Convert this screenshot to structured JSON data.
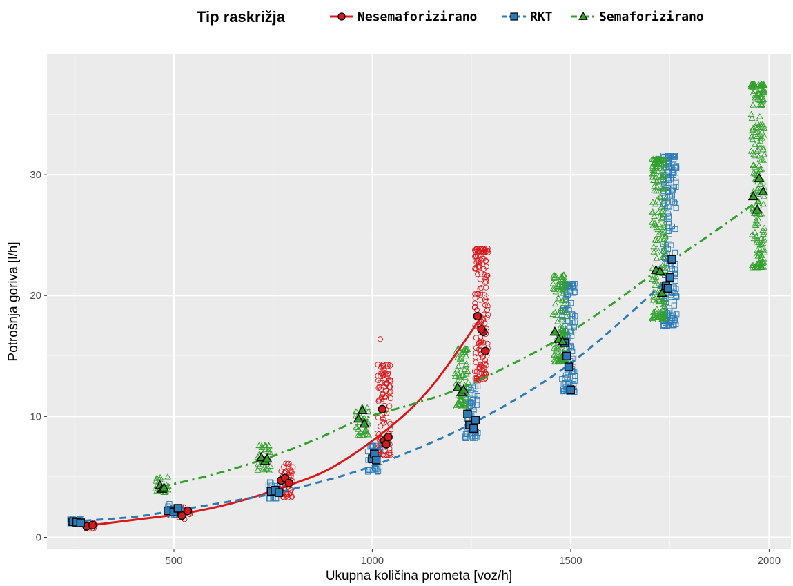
{
  "chart_data": {
    "type": "scatter",
    "legend": {
      "title": "Tip raskrižja",
      "position": "top"
    },
    "xlabel": "Ukupna količina prometa [voz/h]",
    "ylabel": "Potrošnja goriva [l/h]",
    "xlim": [
      180,
      2055
    ],
    "ylim": [
      -1,
      40
    ],
    "x_ticks": [
      500,
      1000,
      1500,
      2000
    ],
    "y_ticks": [
      0,
      10,
      20,
      30
    ],
    "x_tick_labels": [
      "500",
      "1000",
      "1500",
      "2000"
    ],
    "y_tick_labels": [
      "0",
      "10",
      "20",
      "30"
    ],
    "grid": true,
    "series": [
      {
        "name": "Nesemaforizirano",
        "color": "#d7191c",
        "marker": "circle",
        "line_style": "solid",
        "fit_curve": [
          [
            280,
            0.95
          ],
          [
            400,
            1.45
          ],
          [
            530,
            2.0
          ],
          [
            650,
            2.85
          ],
          [
            780,
            4.2
          ],
          [
            900,
            5.8
          ],
          [
            1040,
            9.0
          ],
          [
            1150,
            12.5
          ],
          [
            1270,
            18.0
          ]
        ],
        "mean_points": [
          [
            280,
            0.9
          ],
          [
            295,
            1.0
          ],
          [
            510,
            2.1
          ],
          [
            520,
            1.8
          ],
          [
            535,
            2.2
          ],
          [
            770,
            4.7
          ],
          [
            780,
            4.9
          ],
          [
            790,
            4.5
          ],
          [
            1025,
            10.6
          ],
          [
            1030,
            8.0
          ],
          [
            1040,
            8.3
          ],
          [
            1035,
            7.7
          ],
          [
            1265,
            18.3
          ],
          [
            1280,
            17.0
          ],
          [
            1285,
            15.4
          ],
          [
            1275,
            17.2
          ]
        ],
        "clouds": [
          {
            "x": 285,
            "y_min": 0.7,
            "y_max": 1.2
          },
          {
            "x": 525,
            "y_min": 1.5,
            "y_max": 2.6
          },
          {
            "x": 783,
            "y_min": 3.3,
            "y_max": 6.1
          },
          {
            "x": 1030,
            "y_min": 6.8,
            "y_max": 14.3
          },
          {
            "x": 1275,
            "y_min": 13.0,
            "y_max": 23.9
          }
        ],
        "outliers": [
          [
            1020,
            16.4
          ]
        ]
      },
      {
        "name": "RKT",
        "color": "#2c7bb6",
        "marker": "square",
        "line_style": "dashed",
        "fit_curve": [
          [
            245,
            1.3
          ],
          [
            400,
            1.7
          ],
          [
            500,
            2.2
          ],
          [
            700,
            3.3
          ],
          [
            800,
            4.0
          ],
          [
            1000,
            5.9
          ],
          [
            1250,
            9.4
          ],
          [
            1500,
            14.4
          ],
          [
            1750,
            21.5
          ]
        ],
        "mean_points": [
          [
            245,
            1.3
          ],
          [
            255,
            1.25
          ],
          [
            265,
            1.2
          ],
          [
            485,
            2.2
          ],
          [
            500,
            2.1
          ],
          [
            510,
            2.4
          ],
          [
            745,
            3.8
          ],
          [
            755,
            3.9
          ],
          [
            765,
            3.7
          ],
          [
            1000,
            6.5
          ],
          [
            1005,
            6.9
          ],
          [
            1010,
            6.4
          ],
          [
            1240,
            10.2
          ],
          [
            1245,
            9.3
          ],
          [
            1255,
            9.0
          ],
          [
            1260,
            9.7
          ],
          [
            1490,
            15.0
          ],
          [
            1495,
            14.1
          ],
          [
            1500,
            12.2
          ],
          [
            1485,
            16.1
          ],
          [
            1740,
            20.8
          ],
          [
            1750,
            21.5
          ],
          [
            1755,
            23.0
          ],
          [
            1745,
            20.6
          ]
        ],
        "clouds": [
          {
            "x": 255,
            "y_min": 1.1,
            "y_max": 1.5
          },
          {
            "x": 500,
            "y_min": 1.8,
            "y_max": 2.8
          },
          {
            "x": 755,
            "y_min": 3.2,
            "y_max": 4.6
          },
          {
            "x": 1005,
            "y_min": 5.4,
            "y_max": 7.6
          },
          {
            "x": 1250,
            "y_min": 8.2,
            "y_max": 12.5
          },
          {
            "x": 1495,
            "y_min": 12.0,
            "y_max": 21.0
          },
          {
            "x": 1750,
            "y_min": 17.5,
            "y_max": 31.6
          }
        ],
        "outliers": []
      },
      {
        "name": "Semaforizirano",
        "color": "#33a02c",
        "marker": "triangle",
        "line_style": "dashdot",
        "fit_curve": [
          [
            470,
            4.2
          ],
          [
            600,
            5.2
          ],
          [
            730,
            6.5
          ],
          [
            850,
            8.0
          ],
          [
            975,
            9.8
          ],
          [
            1100,
            11.0
          ],
          [
            1220,
            12.3
          ],
          [
            1350,
            14.3
          ],
          [
            1470,
            16.4
          ],
          [
            1600,
            19.2
          ],
          [
            1720,
            22.1
          ],
          [
            1850,
            25.0
          ],
          [
            1975,
            27.9
          ]
        ],
        "mean_points": [
          [
            465,
            4.3
          ],
          [
            470,
            4.0
          ],
          [
            475,
            4.1
          ],
          [
            720,
            6.6
          ],
          [
            730,
            6.3
          ],
          [
            735,
            6.5
          ],
          [
            965,
            9.8
          ],
          [
            975,
            10.5
          ],
          [
            980,
            9.4
          ],
          [
            1215,
            12.4
          ],
          [
            1225,
            12.0
          ],
          [
            1230,
            12.2
          ],
          [
            1460,
            17.0
          ],
          [
            1470,
            16.4
          ],
          [
            1480,
            16.2
          ],
          [
            1715,
            22.1
          ],
          [
            1725,
            22.0
          ],
          [
            1730,
            20.2
          ],
          [
            1960,
            28.2
          ],
          [
            1970,
            27.1
          ],
          [
            1975,
            29.7
          ],
          [
            1985,
            28.6
          ]
        ],
        "clouds": [
          {
            "x": 470,
            "y_min": 3.7,
            "y_max": 5.0
          },
          {
            "x": 728,
            "y_min": 5.5,
            "y_max": 7.6
          },
          {
            "x": 975,
            "y_min": 8.4,
            "y_max": 10.8
          },
          {
            "x": 1225,
            "y_min": 10.8,
            "y_max": 15.6
          },
          {
            "x": 1472,
            "y_min": 14.5,
            "y_max": 21.7
          },
          {
            "x": 1722,
            "y_min": 18.0,
            "y_max": 31.3
          },
          {
            "x": 1972,
            "y_min": 22.3,
            "y_max": 37.5
          }
        ],
        "outliers": []
      }
    ]
  }
}
